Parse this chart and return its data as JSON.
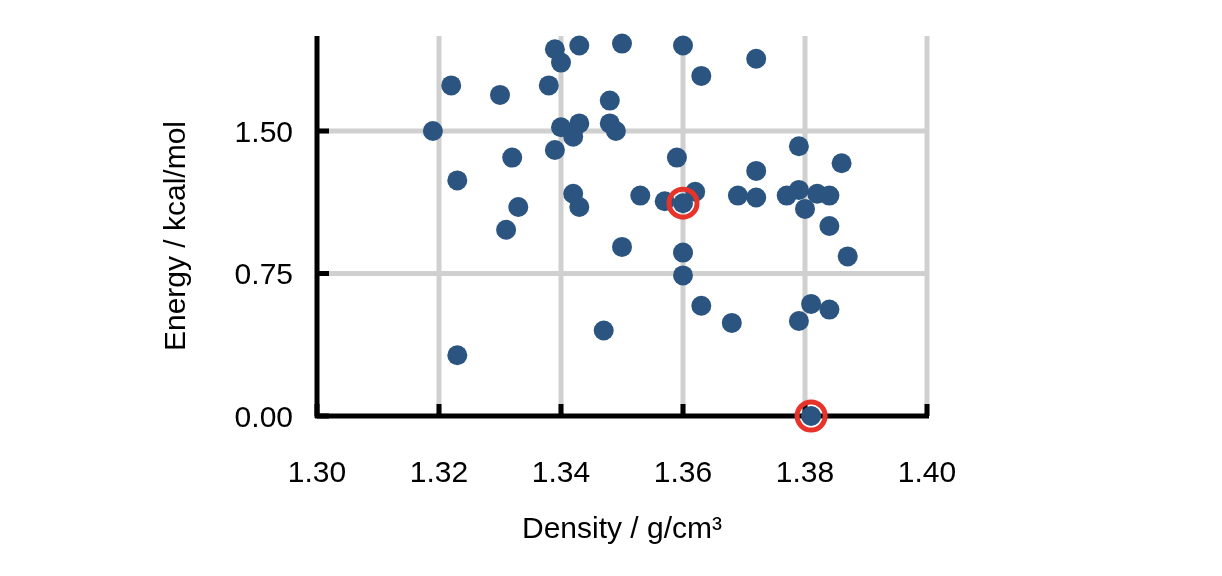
{
  "chart_data": {
    "type": "scatter",
    "xlabel": "Density / g/cm³",
    "ylabel": "Energy / kcal/mol",
    "xlim": [
      1.3,
      1.4
    ],
    "xticks": [
      {
        "value": 1.3,
        "label": "1.30"
      },
      1.32,
      1.34,
      1.36,
      1.38,
      {
        "value": 1.4,
        "label": "1.40"
      }
    ],
    "ylim": [
      0,
      2
    ],
    "yticks": [
      {
        "value": 0,
        "label": "0.00"
      },
      0.75,
      {
        "value": 1.5,
        "label": "1.50"
      }
    ],
    "grid": true,
    "marker": "circle",
    "series": [
      {
        "color": "#2b5580",
        "x": [
          1.319,
          1.322,
          1.323,
          1.323,
          1.33,
          1.332,
          1.333,
          1.331,
          1.338,
          1.339,
          1.34,
          1.343,
          1.34,
          1.342,
          1.343,
          1.339,
          1.348,
          1.349,
          1.348,
          1.35,
          1.342,
          1.343,
          1.35,
          1.347,
          1.353,
          1.357,
          1.36,
          1.359,
          1.36,
          1.363,
          1.362,
          1.36,
          1.36,
          1.363,
          1.368,
          1.372,
          1.369,
          1.372,
          1.372,
          1.379,
          1.377,
          1.379,
          1.38,
          1.382,
          1.384,
          1.386,
          1.384,
          1.387,
          1.379,
          1.381,
          1.384,
          1.381
        ],
        "values": [
          1.5,
          1.74,
          1.24,
          0.32,
          1.69,
          1.36,
          1.1,
          0.98,
          1.74,
          1.93,
          1.86,
          1.95,
          1.52,
          1.47,
          1.54,
          1.4,
          1.54,
          1.5,
          1.66,
          1.96,
          1.17,
          1.1,
          0.89,
          0.45,
          1.16,
          1.13,
          1.12,
          1.36,
          1.95,
          1.79,
          1.18,
          0.86,
          0.74,
          0.58,
          0.49,
          1.88,
          1.16,
          1.15,
          1.29,
          1.42,
          1.16,
          1.19,
          1.09,
          1.17,
          1.16,
          1.33,
          1.0,
          0.84,
          0.5,
          0.59,
          0.56,
          0.0
        ]
      },
      {
        "color": "#e8332a",
        "x": [
          1.36,
          1.381
        ],
        "values": [
          1.12,
          0.0
        ]
      }
    ]
  }
}
